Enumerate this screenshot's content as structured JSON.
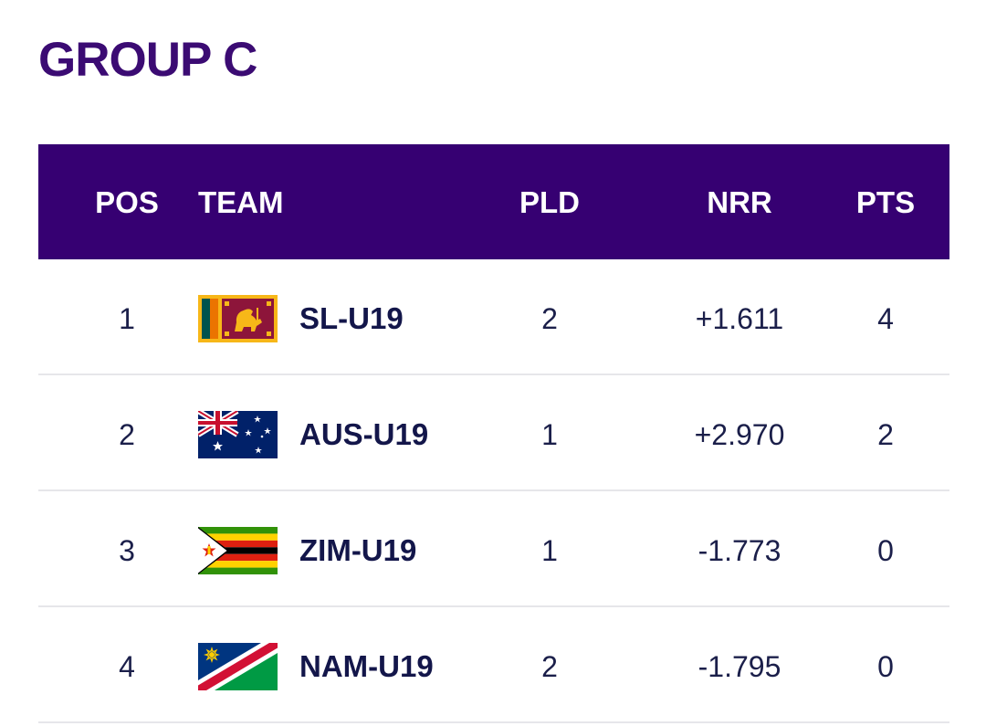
{
  "group": {
    "title": "GROUP C"
  },
  "table": {
    "columns": {
      "pos": "POS",
      "team": "TEAM",
      "pld": "PLD",
      "nrr": "NRR",
      "pts": "PTS"
    },
    "rows": [
      {
        "pos": "1",
        "team": "SL-U19",
        "flag": "sri-lanka-flag",
        "pld": "2",
        "nrr": "+1.611",
        "pts": "4"
      },
      {
        "pos": "2",
        "team": "AUS-U19",
        "flag": "australia-flag",
        "pld": "1",
        "nrr": "+2.970",
        "pts": "2"
      },
      {
        "pos": "3",
        "team": "ZIM-U19",
        "flag": "zimbabwe-flag",
        "pld": "1",
        "nrr": "-1.773",
        "pts": "0"
      },
      {
        "pos": "4",
        "team": "NAM-U19",
        "flag": "namibia-flag",
        "pld": "2",
        "nrr": "-1.795",
        "pts": "0"
      }
    ]
  },
  "colors": {
    "title": "#3b0b73",
    "header_bg": "#360072",
    "header_text": "#ffffff",
    "row_text": "#1b1f4a",
    "divider": "#e6e6ea"
  }
}
